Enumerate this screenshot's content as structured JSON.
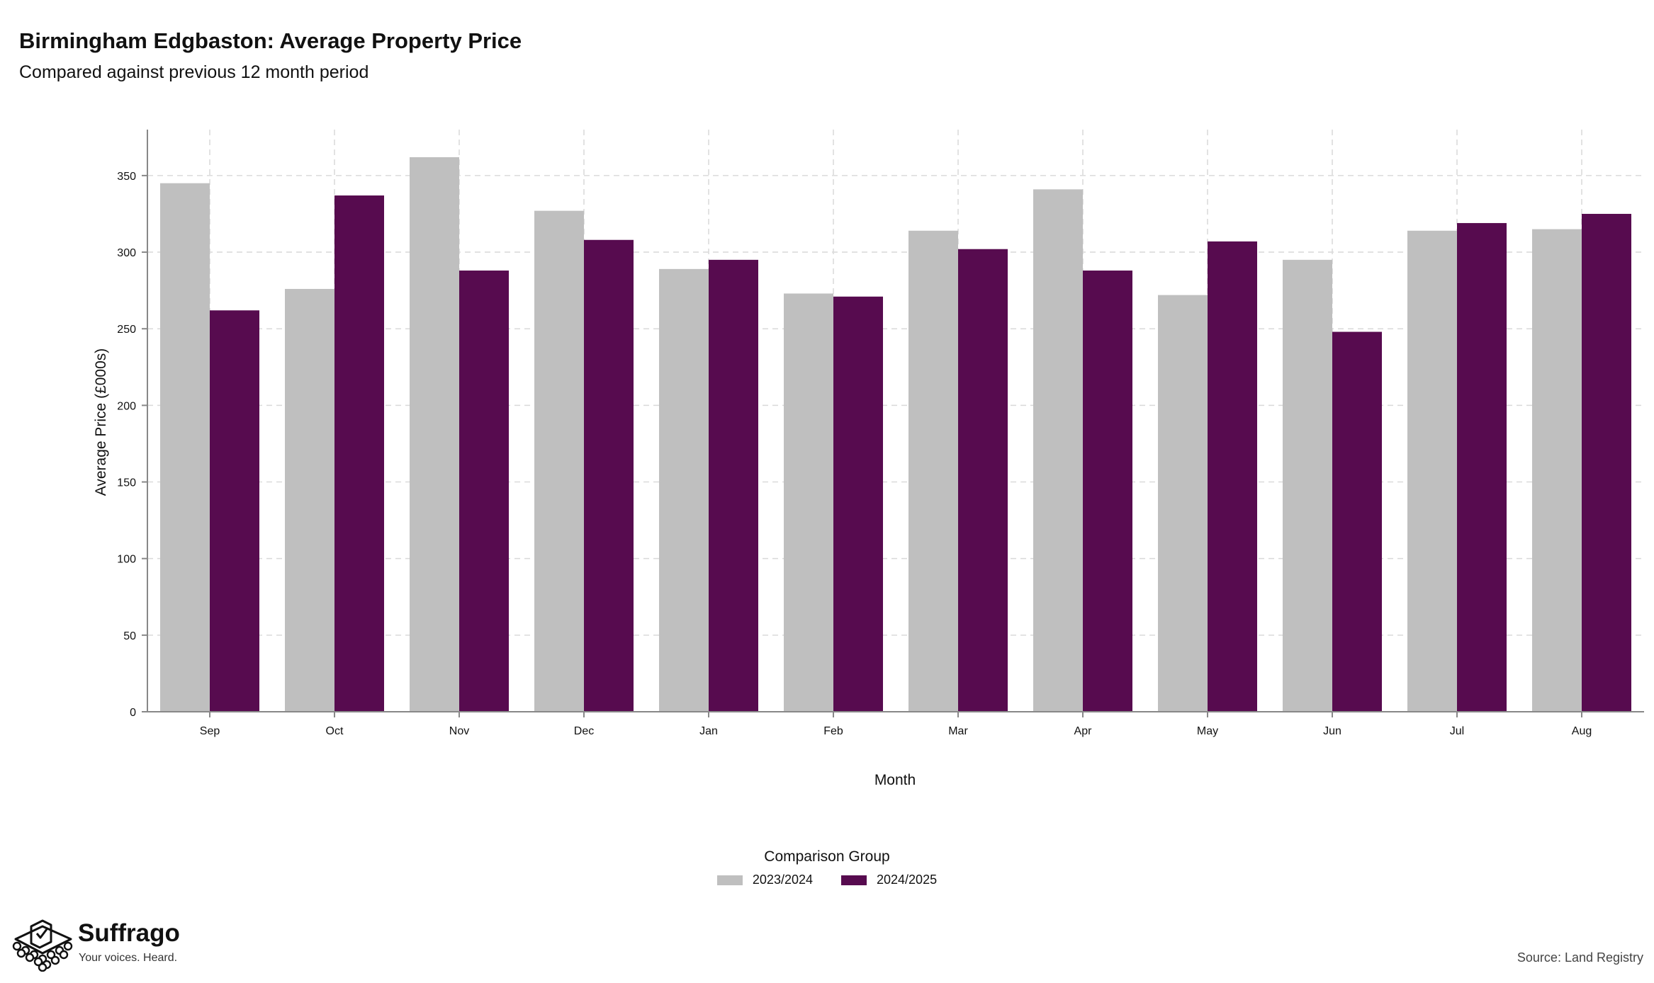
{
  "header": {
    "title": "Birmingham Edgbaston: Average Property Price",
    "subtitle": "Compared against previous 12 month period"
  },
  "chart_data": {
    "type": "bar",
    "title": "Birmingham Edgbaston: Average Property Price",
    "subtitle": "Compared against previous 12 month period",
    "xlabel": "Month",
    "ylabel": "Average Price (£000s)",
    "categories": [
      "Sep",
      "Oct",
      "Nov",
      "Dec",
      "Jan",
      "Feb",
      "Mar",
      "Apr",
      "May",
      "Jun",
      "Jul",
      "Aug"
    ],
    "series": [
      {
        "name": "2023/2024",
        "color": "#bfbfbf",
        "values": [
          345,
          276,
          362,
          327,
          289,
          273,
          314,
          341,
          272,
          295,
          314,
          315
        ]
      },
      {
        "name": "2024/2025",
        "color": "#570b4f",
        "values": [
          262,
          337,
          288,
          308,
          295,
          271,
          302,
          288,
          307,
          248,
          319,
          325
        ]
      }
    ],
    "ylim": [
      0,
      380
    ],
    "yticks": [
      0,
      50,
      100,
      150,
      200,
      250,
      300,
      350
    ],
    "grid": true,
    "legend": {
      "title": "Comparison Group",
      "placement": "bottom-center"
    }
  },
  "footer": {
    "brand_name": "Suffrago",
    "brand_tagline": "Your voices. Heard.",
    "source": "Source: Land Registry"
  }
}
